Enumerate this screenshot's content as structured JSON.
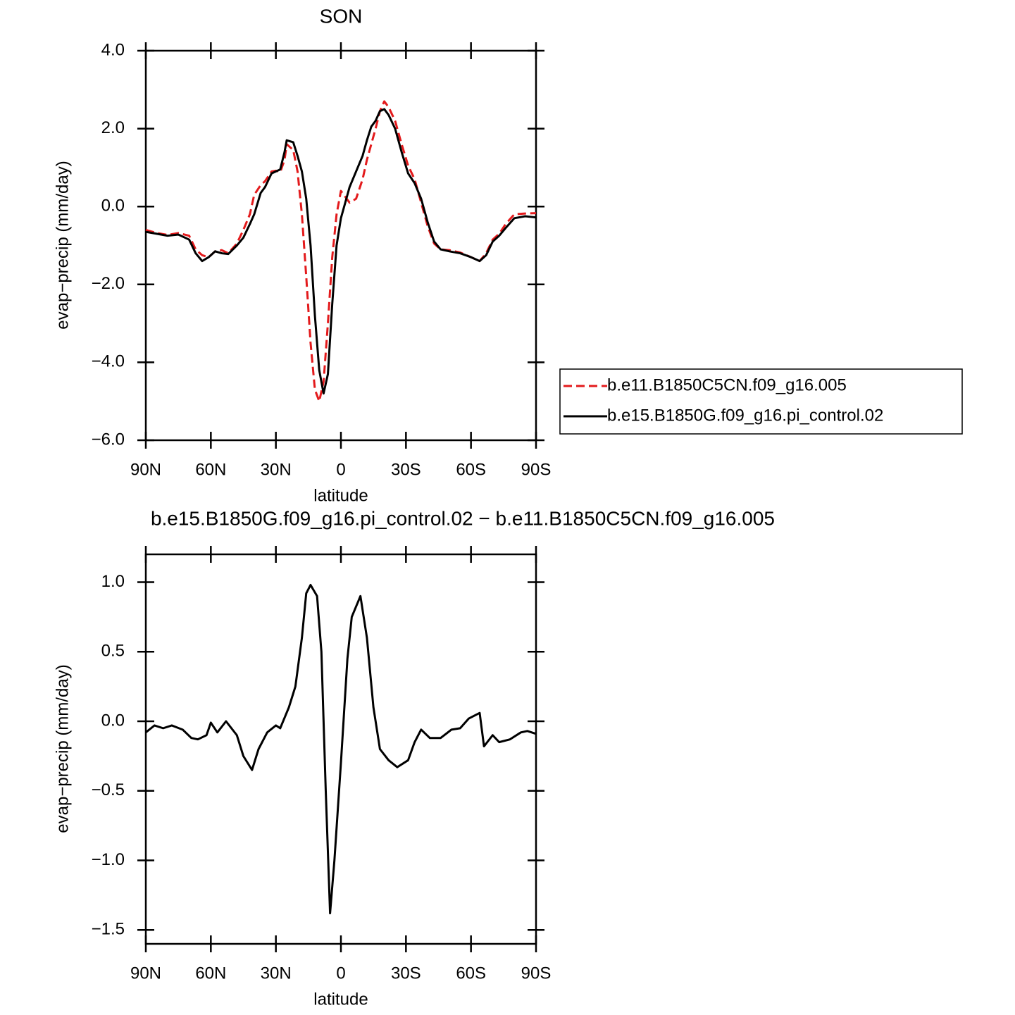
{
  "chart_data": [
    {
      "type": "line",
      "title": "SON",
      "x_label": "latitude",
      "y_label": "evap−precip (mm/day)",
      "x": [
        90,
        85,
        80,
        75,
        70,
        67,
        64,
        61,
        58,
        55,
        52,
        48,
        45,
        42,
        40,
        37,
        35,
        32,
        30,
        28,
        26,
        25,
        22,
        20,
        18,
        16,
        14,
        12,
        10,
        8,
        6,
        4,
        2,
        0,
        -2,
        -4,
        -7,
        -10,
        -12,
        -14,
        -16,
        -18,
        -20,
        -22,
        -25,
        -28,
        -31,
        -34,
        -37,
        -40,
        -43,
        -46,
        -50,
        -55,
        -60,
        -64,
        -67,
        -70,
        -73,
        -76,
        -80,
        -85,
        -90
      ],
      "series": [
        {
          "name": "b.e11.B1850C5CN.f09_g16.005",
          "color": "#e31a1c",
          "linestyle": "dashed",
          "values": [
            -0.6,
            -0.68,
            -0.73,
            -0.68,
            -0.75,
            -1.1,
            -1.25,
            -1.3,
            -1.15,
            -1.12,
            -1.2,
            -0.95,
            -0.6,
            -0.2,
            0.3,
            0.55,
            0.65,
            0.9,
            0.92,
            0.88,
            1.2,
            1.6,
            1.45,
            0.9,
            -0.2,
            -1.8,
            -3.5,
            -4.7,
            -5.0,
            -4.5,
            -3.0,
            -1.3,
            -0.2,
            0.4,
            0.25,
            0.1,
            0.2,
            0.7,
            1.2,
            1.6,
            2.0,
            2.45,
            2.7,
            2.55,
            2.2,
            1.6,
            1.05,
            0.7,
            0.1,
            -0.5,
            -0.95,
            -1.1,
            -1.12,
            -1.18,
            -1.3,
            -1.4,
            -1.2,
            -0.85,
            -0.7,
            -0.45,
            -0.2,
            -0.18,
            -0.17
          ]
        },
        {
          "name": "b.e15.B1850G.f09_g16.pi_control.02",
          "color": "#000000",
          "linestyle": "solid",
          "values": [
            -0.65,
            -0.7,
            -0.75,
            -0.72,
            -0.85,
            -1.2,
            -1.4,
            -1.3,
            -1.15,
            -1.2,
            -1.22,
            -1.0,
            -0.8,
            -0.45,
            -0.2,
            0.35,
            0.5,
            0.85,
            0.9,
            0.95,
            1.4,
            1.7,
            1.65,
            1.3,
            0.9,
            0.2,
            -1.0,
            -2.8,
            -4.2,
            -4.8,
            -4.3,
            -2.5,
            -1.0,
            -0.3,
            0.1,
            0.5,
            0.9,
            1.3,
            1.7,
            2.05,
            2.2,
            2.45,
            2.5,
            2.35,
            2.0,
            1.4,
            0.85,
            0.6,
            0.2,
            -0.4,
            -0.9,
            -1.1,
            -1.15,
            -1.2,
            -1.3,
            -1.4,
            -1.25,
            -0.9,
            -0.75,
            -0.55,
            -0.3,
            -0.25,
            -0.28
          ]
        }
      ],
      "xlim": [
        90,
        -90
      ],
      "ylim": [
        -6,
        4
      ],
      "xticks": [
        {
          "value": 90,
          "label": "90N"
        },
        {
          "value": 60,
          "label": "60N"
        },
        {
          "value": 30,
          "label": "30N"
        },
        0,
        {
          "value": -30,
          "label": "30S"
        },
        {
          "value": -60,
          "label": "60S"
        },
        {
          "value": -90,
          "label": "90S"
        }
      ],
      "yticks": [
        {
          "value": -6,
          "label": "−6.0"
        },
        {
          "value": -4,
          "label": "−4.0"
        },
        {
          "value": -2,
          "label": "−2.0"
        },
        {
          "value": 0,
          "label": "0.0"
        },
        {
          "value": 2,
          "label": "2.0"
        },
        {
          "value": 4,
          "label": "4.0"
        }
      ],
      "legend": "outside-right"
    },
    {
      "type": "line",
      "title": "b.e15.B1850G.f09_g16.pi_control.02 − b.e11.B1850C5CN.f09_g16.005",
      "x_label": "latitude",
      "y_label": "evap−precip (mm/day)",
      "x": [
        90,
        86,
        82,
        78,
        73,
        69,
        66,
        62,
        60,
        57,
        53,
        48,
        45,
        41,
        38,
        34,
        30,
        28,
        24,
        21,
        18,
        16,
        14,
        11,
        9,
        7,
        5,
        3,
        0,
        -3,
        -5,
        -9,
        -12,
        -15,
        -18,
        -22,
        -26,
        -31,
        -34,
        -37,
        -41,
        -46,
        -51,
        -55,
        -59,
        -64,
        -66,
        -70,
        -73,
        -78,
        -83,
        -86,
        -90
      ],
      "series": [
        {
          "color": "#000000",
          "linestyle": "solid",
          "values": [
            -0.08,
            -0.03,
            -0.05,
            -0.03,
            -0.06,
            -0.12,
            -0.13,
            -0.1,
            -0.01,
            -0.08,
            0.0,
            -0.1,
            -0.25,
            -0.35,
            -0.2,
            -0.08,
            -0.03,
            -0.05,
            0.1,
            0.25,
            0.6,
            0.92,
            0.98,
            0.9,
            0.5,
            -0.5,
            -1.38,
            -1.0,
            -0.3,
            0.45,
            0.75,
            0.9,
            0.6,
            0.1,
            -0.2,
            -0.28,
            -0.33,
            -0.28,
            -0.15,
            -0.06,
            -0.12,
            -0.12,
            -0.06,
            -0.05,
            0.02,
            0.06,
            -0.18,
            -0.1,
            -0.15,
            -0.13,
            -0.08,
            -0.07,
            -0.09
          ]
        }
      ],
      "xlim": [
        90,
        -90
      ],
      "ylim": [
        -1.6,
        1.2
      ],
      "xticks": [
        {
          "value": 90,
          "label": "90N"
        },
        {
          "value": 60,
          "label": "60N"
        },
        {
          "value": 30,
          "label": "30N"
        },
        0,
        {
          "value": -30,
          "label": "30S"
        },
        {
          "value": -60,
          "label": "60S"
        },
        {
          "value": -90,
          "label": "90S"
        }
      ],
      "yticks": [
        {
          "value": -1.5,
          "label": "−1.5"
        },
        {
          "value": -1,
          "label": "−1.0"
        },
        {
          "value": -0.5,
          "label": "−0.5"
        },
        {
          "value": 0,
          "label": "0.0"
        },
        {
          "value": 0.5,
          "label": "0.5"
        },
        {
          "value": 1,
          "label": "1.0"
        }
      ]
    }
  ]
}
